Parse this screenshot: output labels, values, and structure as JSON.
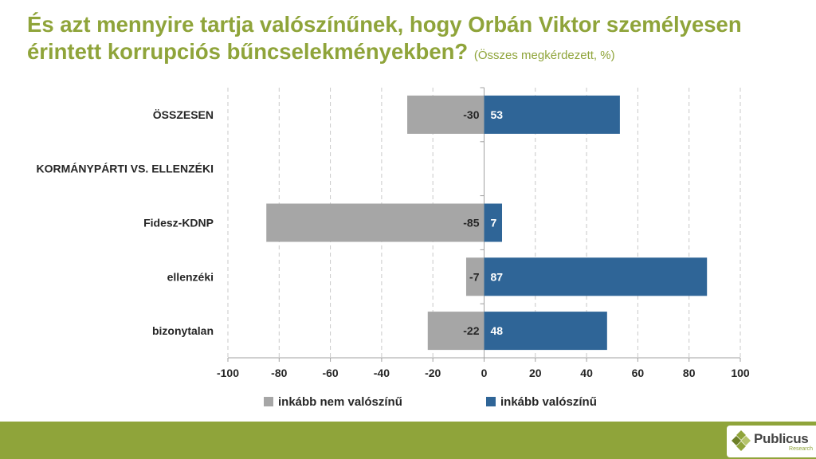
{
  "header": {
    "title": "És azt mennyire tartja valószínűnek, hogy Orbán Viktor személyesen érintett korrupciós bűncselekményekben?",
    "subtitle": "(Összes megkérdezett, %)"
  },
  "colors": {
    "accent": "#8fa43a",
    "negative_bar": "#a6a6a6",
    "positive_bar": "#2f6597"
  },
  "chart_data": {
    "type": "bar",
    "orientation": "horizontal-diverging",
    "categories": [
      "ÖSSZESEN",
      "KORMÁNYPÁRTI VS. ELLENZÉKI",
      "Fidesz-KDNP",
      "ellenzéki",
      "bizonytalan"
    ],
    "series": [
      {
        "name": "inkább nem valószínű",
        "values": [
          -30,
          null,
          -85,
          -7,
          -22
        ]
      },
      {
        "name": "inkább valószínű",
        "values": [
          53,
          null,
          7,
          87,
          48
        ]
      }
    ],
    "xlim": [
      -100,
      100
    ],
    "xticks": [
      -100,
      -80,
      -60,
      -40,
      -20,
      0,
      20,
      40,
      60,
      80,
      100
    ],
    "grid": true,
    "legend": "bottom"
  },
  "logo": {
    "name": "Publicus",
    "tagline": "Research"
  }
}
